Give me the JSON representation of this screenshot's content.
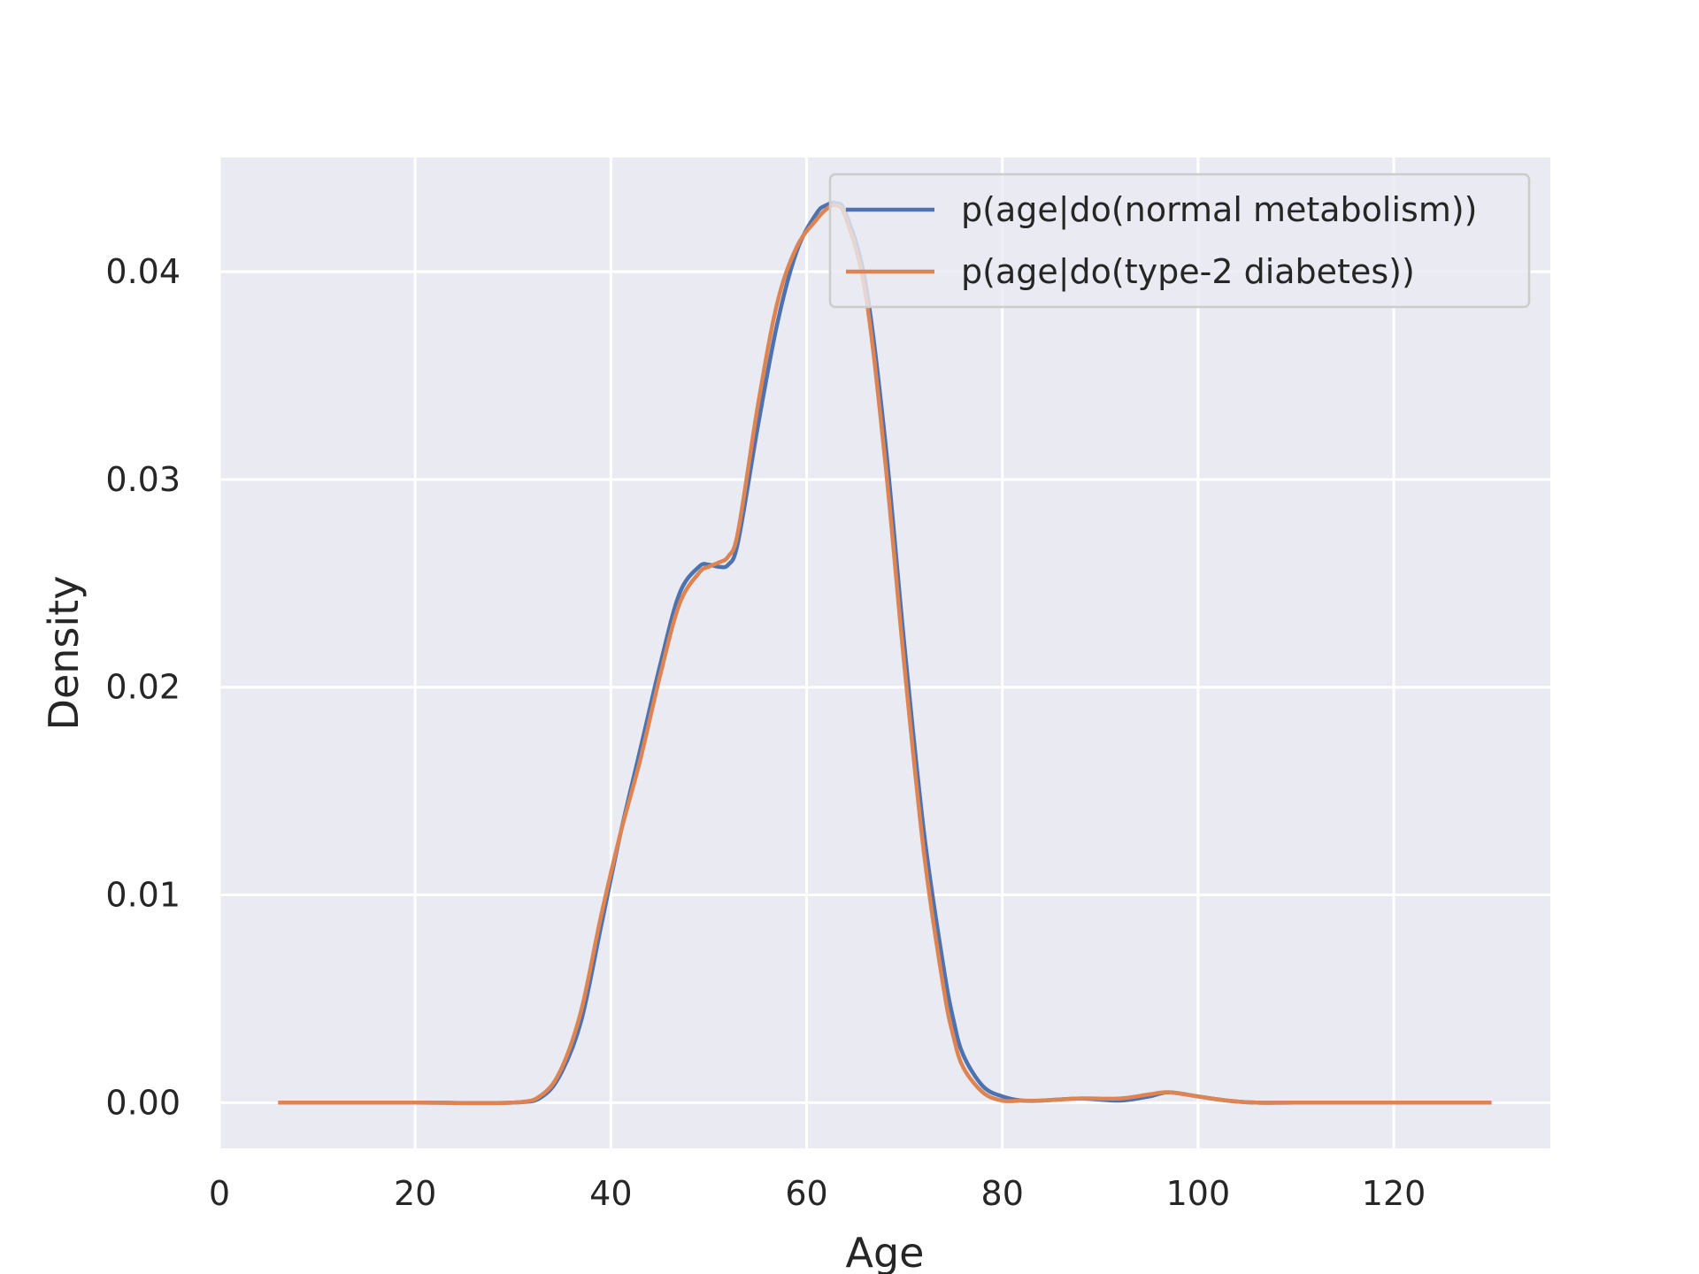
{
  "chart_data": {
    "type": "line",
    "xlabel": "Age",
    "ylabel": "Density",
    "xlim": [
      0,
      136
    ],
    "ylim": [
      -0.0022,
      0.0455
    ],
    "xticks": [
      "0",
      "20",
      "40",
      "60",
      "80",
      "100",
      "120"
    ],
    "xtick_values": [
      0,
      20,
      40,
      60,
      80,
      100,
      120
    ],
    "yticks": [
      "0.00",
      "0.01",
      "0.02",
      "0.03",
      "0.04"
    ],
    "ytick_values": [
      0.0,
      0.01,
      0.02,
      0.03,
      0.04
    ],
    "grid": true,
    "legend_position": "top-right",
    "series": [
      {
        "name": "p(age|do(normal metabolism))",
        "color": "#4c72b0",
        "x": [
          6,
          20,
          30,
          33,
          35,
          37,
          39,
          41,
          43,
          45,
          47,
          49,
          50,
          51,
          52,
          53,
          55,
          57,
          59,
          61,
          62,
          63,
          64,
          66,
          68,
          70,
          72,
          74,
          75,
          76,
          78,
          80,
          82,
          84,
          88,
          92,
          95,
          97,
          100,
          103,
          106,
          110,
          120,
          128
        ],
        "y": [
          0.0,
          0.0,
          0.0,
          0.0003,
          0.0015,
          0.004,
          0.0085,
          0.013,
          0.017,
          0.021,
          0.0245,
          0.0258,
          0.0259,
          0.0258,
          0.0259,
          0.027,
          0.0325,
          0.0375,
          0.041,
          0.0428,
          0.0432,
          0.0433,
          0.0428,
          0.0395,
          0.032,
          0.022,
          0.013,
          0.0065,
          0.004,
          0.0023,
          0.0008,
          0.0003,
          0.0001,
          0.0001,
          0.0002,
          0.0001,
          0.0003,
          0.0005,
          0.0003,
          0.0001,
          0.0,
          0.0,
          0.0,
          0.0
        ]
      },
      {
        "name": "p(age|do(type-2 diabetes))",
        "color": "#dd8452",
        "x": [
          6,
          20,
          30,
          33,
          35,
          37,
          39,
          41,
          43,
          45,
          47,
          49,
          50,
          51,
          52,
          53,
          55,
          57,
          59,
          61,
          62,
          63,
          64,
          66,
          68,
          70,
          72,
          74,
          75,
          76,
          78,
          80,
          82,
          84,
          88,
          92,
          95,
          97,
          100,
          103,
          106,
          110,
          120,
          130
        ],
        "y": [
          0.0,
          0.0,
          0.0,
          0.0004,
          0.0017,
          0.0045,
          0.009,
          0.013,
          0.0165,
          0.0205,
          0.024,
          0.0255,
          0.0258,
          0.026,
          0.0263,
          0.0275,
          0.0335,
          0.0385,
          0.0412,
          0.0425,
          0.043,
          0.0432,
          0.0426,
          0.039,
          0.031,
          0.021,
          0.012,
          0.0055,
          0.0032,
          0.0017,
          0.0005,
          0.0001,
          0.0001,
          0.0001,
          0.0002,
          0.0002,
          0.0004,
          0.0005,
          0.0003,
          0.0001,
          0.0,
          0.0,
          0.0,
          0.0
        ]
      }
    ]
  }
}
